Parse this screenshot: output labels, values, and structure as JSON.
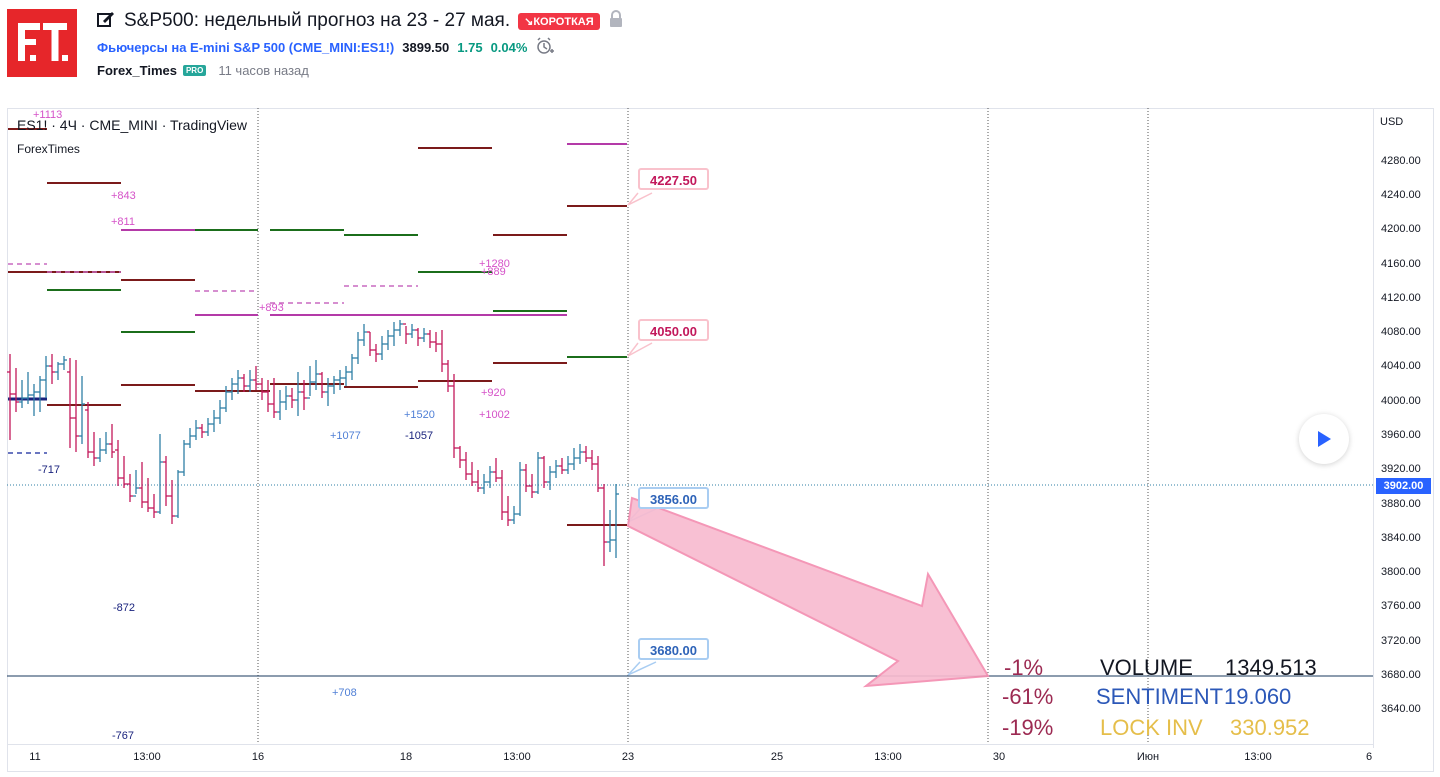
{
  "header": {
    "title": "S&P500: недельный прогноз на 23 - 27 мая.",
    "badge": "↘КОРОТКАЯ",
    "symbol_link": "Фьючерсы на E-mini S&P 500 (CME_MINI:ES1!)",
    "price": "3899.50",
    "change": "1.75",
    "change_pct": "0.04%",
    "author": "Forex_Times",
    "pro_badge": "PRO",
    "time_ago": "11 часов назад"
  },
  "chart": {
    "legend": "ES1! · 4Ч · CME_MINI · TradingView",
    "legend_sub": "ForexTimes",
    "currency": "USD",
    "current_price_label": "3902.00",
    "y_ticks": [
      "4280.00",
      "4240.00",
      "4200.00",
      "4160.00",
      "4120.00",
      "4080.00",
      "4040.00",
      "4000.00",
      "3960.00",
      "3920.00",
      "3880.00",
      "3840.00",
      "3800.00",
      "3760.00",
      "3720.00",
      "3680.00",
      "3640.00"
    ],
    "x_ticks": [
      "11",
      "13:00",
      "16",
      "18",
      "13:00",
      "23",
      "25",
      "13:00",
      "30",
      "Июн",
      "13:00",
      "6"
    ],
    "callouts": [
      "4227.50",
      "4050.00",
      "3856.00",
      "3680.00"
    ],
    "annotations": [
      "+1113",
      "+843",
      "+811",
      "+893",
      "+1280",
      "+889",
      "+920",
      "+1002",
      "+1520",
      "+1077",
      "-1057",
      "-717",
      "-872",
      "+708",
      "-767"
    ],
    "colors": {
      "pink": "#f8bbd0",
      "bar_up": "#2f7fa6",
      "bar_down": "#c2185b"
    }
  },
  "stats": {
    "rows": [
      {
        "pct": "-1%",
        "label": "VOLUME",
        "value": "1349.513"
      },
      {
        "pct": "-61%",
        "label": "SENTIMENT",
        "value": "19.060"
      },
      {
        "pct": "-19%",
        "label": "LOCK INV",
        "value": "330.952"
      }
    ]
  }
}
